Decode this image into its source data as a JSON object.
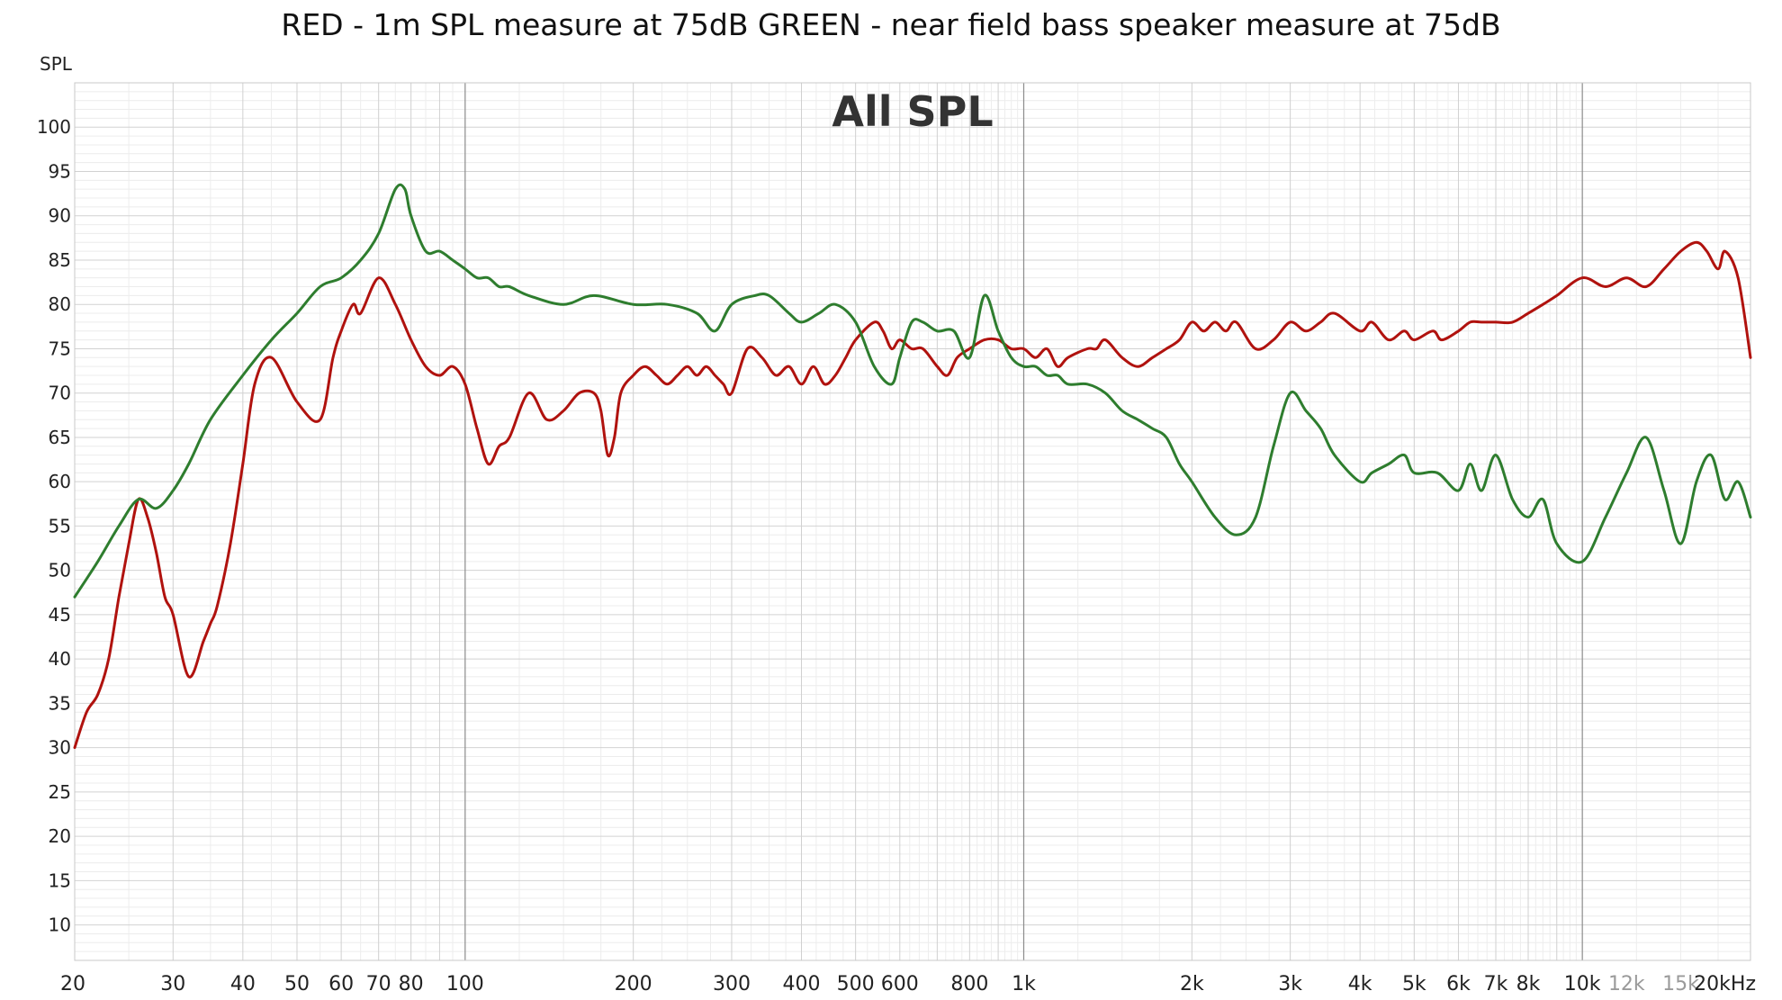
{
  "chart_data": {
    "type": "line",
    "title": "RED - 1m SPL measure at 75dB GREEN - near field bass speaker measure at 75dB",
    "annotation": "All SPL",
    "ylabel": "SPL",
    "xlabel": "",
    "xscale": "log",
    "xlim": [
      20,
      20000
    ],
    "ylim": [
      6,
      105
    ],
    "grid": true,
    "y_ticks": [
      "10",
      "15",
      "20",
      "25",
      "30",
      "35",
      "40",
      "45",
      "50",
      "55",
      "60",
      "65",
      "70",
      "75",
      "80",
      "85",
      "90",
      "95",
      "100"
    ],
    "x_ticks": [
      {
        "value": 20,
        "label": "20"
      },
      {
        "value": 30,
        "label": "30"
      },
      {
        "value": 40,
        "label": "40"
      },
      {
        "value": 50,
        "label": "50"
      },
      {
        "value": 60,
        "label": "60"
      },
      {
        "value": 70,
        "label": "70"
      },
      {
        "value": 80,
        "label": "80"
      },
      {
        "value": 100,
        "label": "100"
      },
      {
        "value": 200,
        "label": "200"
      },
      {
        "value": 300,
        "label": "300"
      },
      {
        "value": 400,
        "label": "400"
      },
      {
        "value": 500,
        "label": "500"
      },
      {
        "value": 600,
        "label": "600"
      },
      {
        "value": 800,
        "label": "800"
      },
      {
        "value": 1000,
        "label": "1k"
      },
      {
        "value": 2000,
        "label": "2k"
      },
      {
        "value": 3000,
        "label": "3k"
      },
      {
        "value": 4000,
        "label": "4k"
      },
      {
        "value": 5000,
        "label": "5k"
      },
      {
        "value": 6000,
        "label": "6k"
      },
      {
        "value": 7000,
        "label": "7k"
      },
      {
        "value": 8000,
        "label": "8k"
      },
      {
        "value": 10000,
        "label": "10k"
      },
      {
        "value": 12000,
        "label": "12k",
        "muted": true
      },
      {
        "value": 15000,
        "label": "15k",
        "muted": true
      },
      {
        "value": 20000,
        "label": "20kHz"
      }
    ],
    "series": [
      {
        "color": "#b0120e",
        "x": [
          20,
          21,
          22,
          23,
          24,
          25,
          26,
          27,
          28,
          29,
          30,
          32,
          34,
          35,
          36,
          38,
          40,
          42,
          45,
          50,
          55,
          58,
          60,
          63,
          65,
          70,
          75,
          80,
          85,
          90,
          95,
          100,
          105,
          110,
          115,
          120,
          130,
          140,
          150,
          160,
          170,
          175,
          180,
          185,
          190,
          200,
          210,
          220,
          230,
          240,
          250,
          260,
          270,
          280,
          290,
          300,
          320,
          340,
          360,
          380,
          400,
          420,
          440,
          460,
          480,
          500,
          540,
          560,
          580,
          600,
          630,
          660,
          700,
          730,
          760,
          800,
          850,
          900,
          950,
          1000,
          1050,
          1100,
          1150,
          1200,
          1300,
          1350,
          1400,
          1500,
          1600,
          1700,
          1800,
          1900,
          2000,
          2100,
          2200,
          2300,
          2400,
          2600,
          2800,
          3000,
          3200,
          3400,
          3600,
          4000,
          4200,
          4500,
          4800,
          5000,
          5400,
          5600,
          6000,
          6300,
          6600,
          7000,
          7500,
          8000,
          8500,
          9000,
          10000,
          11000,
          12000,
          13000,
          14000,
          15000,
          16000,
          16700,
          17500,
          18000,
          19000,
          20000
        ],
        "y": [
          30,
          34,
          36,
          40,
          47,
          53,
          58,
          56,
          52,
          47,
          45,
          38,
          42,
          44,
          46,
          53,
          62,
          71,
          74,
          69,
          67,
          74,
          77,
          80,
          79,
          83,
          80,
          76,
          73,
          72,
          73,
          71,
          66,
          62,
          64,
          65,
          70,
          67,
          68,
          70,
          70,
          68,
          63,
          65,
          70,
          72,
          73,
          72,
          71,
          72,
          73,
          72,
          73,
          72,
          71,
          70,
          75,
          74,
          72,
          73,
          71,
          73,
          71,
          72,
          74,
          76,
          78,
          77,
          75,
          76,
          75,
          75,
          73,
          72,
          74,
          75,
          76,
          76,
          75,
          75,
          74,
          75,
          73,
          74,
          75,
          75,
          76,
          74,
          73,
          74,
          75,
          76,
          78,
          77,
          78,
          77,
          78,
          75,
          76,
          78,
          77,
          78,
          79,
          77,
          78,
          76,
          77,
          76,
          77,
          76,
          77,
          78,
          78,
          78,
          78,
          79,
          80,
          81,
          83,
          82,
          83,
          82,
          84,
          86,
          87,
          86,
          84,
          86,
          83,
          74
        ]
      },
      {
        "color": "#2e7d2e",
        "x": [
          20,
          22,
          24,
          26,
          28,
          30,
          32,
          35,
          40,
          45,
          50,
          55,
          60,
          65,
          70,
          75,
          78,
          80,
          85,
          90,
          95,
          100,
          105,
          110,
          115,
          120,
          130,
          150,
          170,
          200,
          230,
          260,
          280,
          300,
          330,
          350,
          380,
          400,
          430,
          460,
          500,
          540,
          580,
          600,
          630,
          660,
          700,
          750,
          800,
          850,
          900,
          950,
          1000,
          1050,
          1100,
          1150,
          1200,
          1300,
          1400,
          1500,
          1600,
          1700,
          1800,
          1900,
          2000,
          2200,
          2400,
          2600,
          2800,
          3000,
          3200,
          3400,
          3600,
          4000,
          4200,
          4500,
          4800,
          5000,
          5500,
          6000,
          6300,
          6600,
          7000,
          7500,
          8000,
          8500,
          9000,
          10000,
          11000,
          12000,
          13000,
          14000,
          15000,
          16000,
          17000,
          18000,
          19000,
          20000
        ],
        "y": [
          47,
          51,
          55,
          58,
          57,
          59,
          62,
          67,
          72,
          76,
          79,
          82,
          83,
          85,
          88,
          93,
          93,
          90,
          86,
          86,
          85,
          84,
          83,
          83,
          82,
          82,
          81,
          80,
          81,
          80,
          80,
          79,
          77,
          80,
          81,
          81,
          79,
          78,
          79,
          80,
          78,
          73,
          71,
          74,
          78,
          78,
          77,
          77,
          74,
          81,
          77,
          74,
          73,
          73,
          72,
          72,
          71,
          71,
          70,
          68,
          67,
          66,
          65,
          62,
          60,
          56,
          54,
          56,
          64,
          70,
          68,
          66,
          63,
          60,
          61,
          62,
          63,
          61,
          61,
          59,
          62,
          59,
          63,
          58,
          56,
          58,
          53,
          51,
          56,
          61,
          65,
          59,
          53,
          60,
          63,
          58,
          60,
          56
        ]
      }
    ]
  }
}
